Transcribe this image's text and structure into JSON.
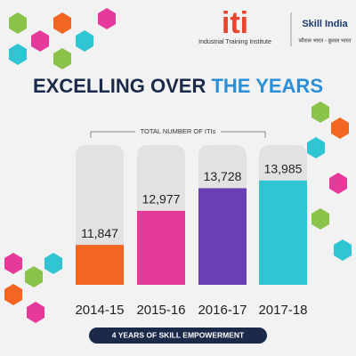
{
  "logos": {
    "iti": "iti",
    "iti_name": "Industrial Training Institute",
    "skill": "Skill India",
    "skill_tagline": "कौशल भारत - कुशल भारत"
  },
  "chart_data": {
    "type": "bar",
    "title_dark": "EXCELLING OVER",
    "title_blue": "THE YEARS",
    "subtitle": "TOTAL NUMBER OF ITIs",
    "categories": [
      "2014-15",
      "2015-16",
      "2016-17",
      "2017-18"
    ],
    "values": [
      11847,
      12977,
      13728,
      13985
    ],
    "value_labels": [
      "11,847",
      "12,977",
      "13,728",
      "13,985"
    ],
    "colors": [
      "#f26522",
      "#e5399c",
      "#6b3fb4",
      "#30c5d2"
    ],
    "footer": "4 YEARS OF SKILL EMPOWERMENT"
  }
}
